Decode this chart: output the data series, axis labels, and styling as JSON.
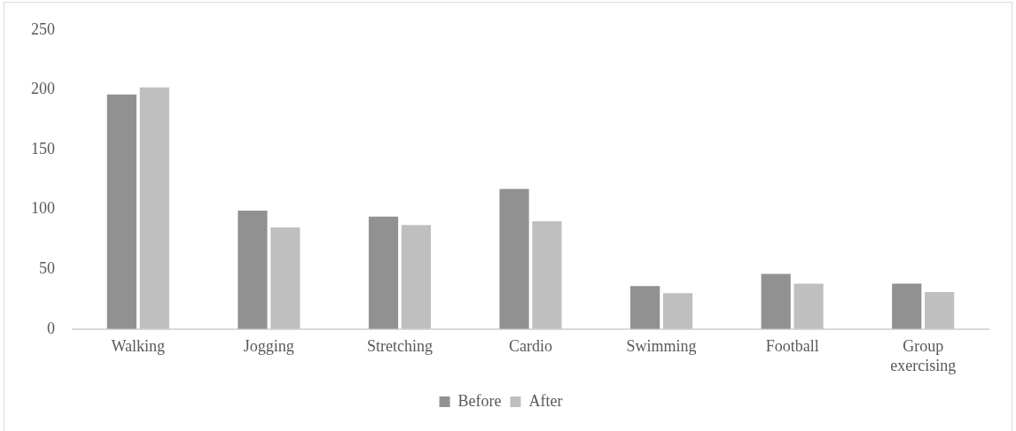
{
  "chart_data": {
    "type": "bar",
    "categories": [
      "Walking",
      "Jogging",
      "Stretching",
      "Cardio",
      "Swimming",
      "Football",
      "Group exercising"
    ],
    "series": [
      {
        "name": "Before",
        "color": "#919191",
        "values": [
          196,
          99,
          94,
          117,
          36,
          46,
          38
        ]
      },
      {
        "name": "After",
        "color": "#bfbfbf",
        "values": [
          202,
          85,
          87,
          90,
          30,
          38,
          31
        ]
      }
    ],
    "ylim": [
      0,
      250
    ],
    "yticks": [
      0,
      50,
      100,
      150,
      200,
      250
    ],
    "grid": false,
    "legend": "bottom"
  }
}
